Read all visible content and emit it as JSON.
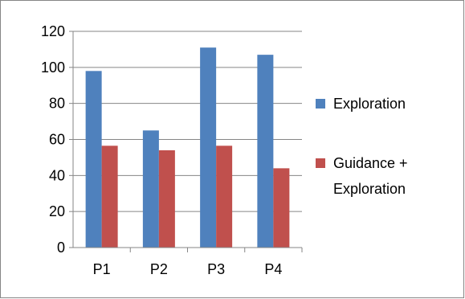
{
  "chart_data": {
    "type": "bar",
    "categories": [
      "P1",
      "P2",
      "P3",
      "P4"
    ],
    "series": [
      {
        "name": "Exploration",
        "values": [
          98,
          65,
          111,
          107
        ],
        "color": "#4f81bd"
      },
      {
        "name": "Guidance + Exploration",
        "values": [
          56.5,
          54,
          56.5,
          44
        ],
        "color": "#c0504d"
      }
    ],
    "title": "",
    "xlabel": "",
    "ylabel": "",
    "ylim": [
      0,
      120
    ],
    "yticks": [
      0,
      20,
      40,
      60,
      80,
      100,
      120
    ],
    "grid": true,
    "legend_position": "right",
    "legend_labels": [
      {
        "lines": [
          "Exploration"
        ]
      },
      {
        "lines": [
          "Guidance +",
          "Exploration"
        ]
      }
    ]
  }
}
